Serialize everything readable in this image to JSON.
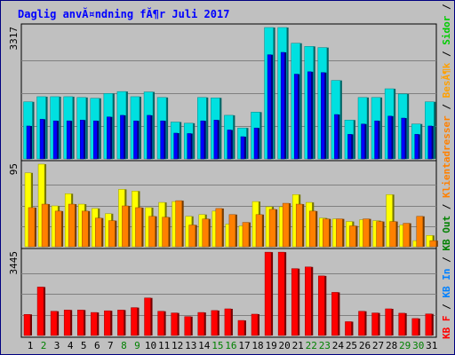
{
  "title": "Daglig anvĂ¤ndning fĂ¶r Juli 2017",
  "chart_data": {
    "type": "bar",
    "title": "Daglig anvĂ¤ndning fĂ¶r Juli 2017",
    "categories": [
      "1",
      "2",
      "3",
      "4",
      "5",
      "6",
      "7",
      "8",
      "9",
      "10",
      "11",
      "12",
      "13",
      "14",
      "15",
      "16",
      "17",
      "18",
      "19",
      "20",
      "21",
      "22",
      "23",
      "24",
      "25",
      "26",
      "27",
      "28",
      "29",
      "30",
      "31"
    ],
    "weekend_days": [
      "2",
      "8",
      "9",
      "15",
      "16",
      "22",
      "23",
      "29",
      "30"
    ],
    "panels": [
      {
        "id": "hits",
        "max_label": "3317",
        "ymax": 3317,
        "series": [
          {
            "name": "TrĂ¤ffar",
            "color": "#00e0e0",
            "values": [
              1440,
              1570,
              1570,
              1570,
              1550,
              1530,
              1650,
              1700,
              1570,
              1690,
              1550,
              930,
              900,
              1550,
              1540,
              1100,
              780,
              1180,
              3317,
              3317,
              2920,
              2840,
              2810,
              1980,
              980,
              1550,
              1550,
              1770,
              1640,
              880,
              1440
            ]
          },
          {
            "name": "Filer",
            "color": "#0000ff",
            "values": [
              830,
              1000,
              960,
              960,
              980,
              960,
              1060,
              1100,
              960,
              1100,
              960,
              650,
              640,
              960,
              980,
              730,
              560,
              780,
              2630,
              2690,
              2140,
              2200,
              2180,
              1120,
              620,
              880,
              960,
              1080,
              1030,
              620,
              830
            ]
          },
          {
            "name": "Sidor",
            "color": "#00cc00",
            "values": [
              0,
              0,
              0,
              0,
              0,
              0,
              0,
              0,
              0,
              0,
              0,
              0,
              0,
              0,
              0,
              0,
              0,
              0,
              0,
              0,
              0,
              0,
              0,
              0,
              0,
              0,
              0,
              0,
              0,
              0,
              0
            ]
          }
        ]
      },
      {
        "id": "visits",
        "max_label": "95",
        "ymax": 95,
        "series": [
          {
            "name": "BesĂ¶k",
            "color": "#ffff00",
            "values": [
              85,
              95,
              47,
              61,
              49,
              44,
              38,
              66,
              64,
              45,
              51,
              52,
              35,
              37,
              41,
              26,
              24,
              52,
              46,
              46,
              60,
              51,
              33,
              32,
              29,
              31,
              30,
              60,
              25,
              7,
              13
            ]
          },
          {
            "name": "Klientadresser",
            "color": "#ff8000",
            "values": [
              45,
              49,
              41,
              49,
              41,
              33,
              30,
              47,
              45,
              35,
              34,
              53,
              25,
              32,
              44,
              37,
              28,
              37,
              43,
              50,
              49,
              41,
              32,
              32,
              24,
              32,
              29,
              29,
              27,
              35,
              7
            ]
          }
        ]
      },
      {
        "id": "kb",
        "max_label": "3445",
        "ymax": 3445,
        "series": [
          {
            "name": "KB F",
            "color": "#ff0000",
            "values": [
              870,
              2000,
              1000,
              1050,
              1050,
              950,
              1020,
              1050,
              1150,
              1550,
              1000,
              930,
              780,
              950,
              1030,
              1100,
              620,
              880,
              3440,
              3440,
              2760,
              2830,
              2460,
              1780,
              570,
              1000,
              930,
              1100,
              920,
              700,
              890
            ]
          }
        ]
      }
    ],
    "legend": [
      "KB F",
      "KB In",
      "KB Out",
      "Klientadresser",
      "BesĂ¶k",
      "Sidor",
      "Filer",
      "TrĂ¤ffar"
    ],
    "legend_colors": {
      "KB F": "#ff0000",
      "KB In": "#0080ff",
      "KB Out": "#008000",
      "Klientadresser": "#ff8000",
      "BesĂ¶k": "#ffa000",
      "Sidor": "#00cc00",
      "Filer": "#0000ff",
      "TrĂ¤ffar": "#008080"
    },
    "separator": " / ",
    "xlabel": "",
    "ylabel": "",
    "grid": true,
    "legend_position": "right-vertical"
  }
}
